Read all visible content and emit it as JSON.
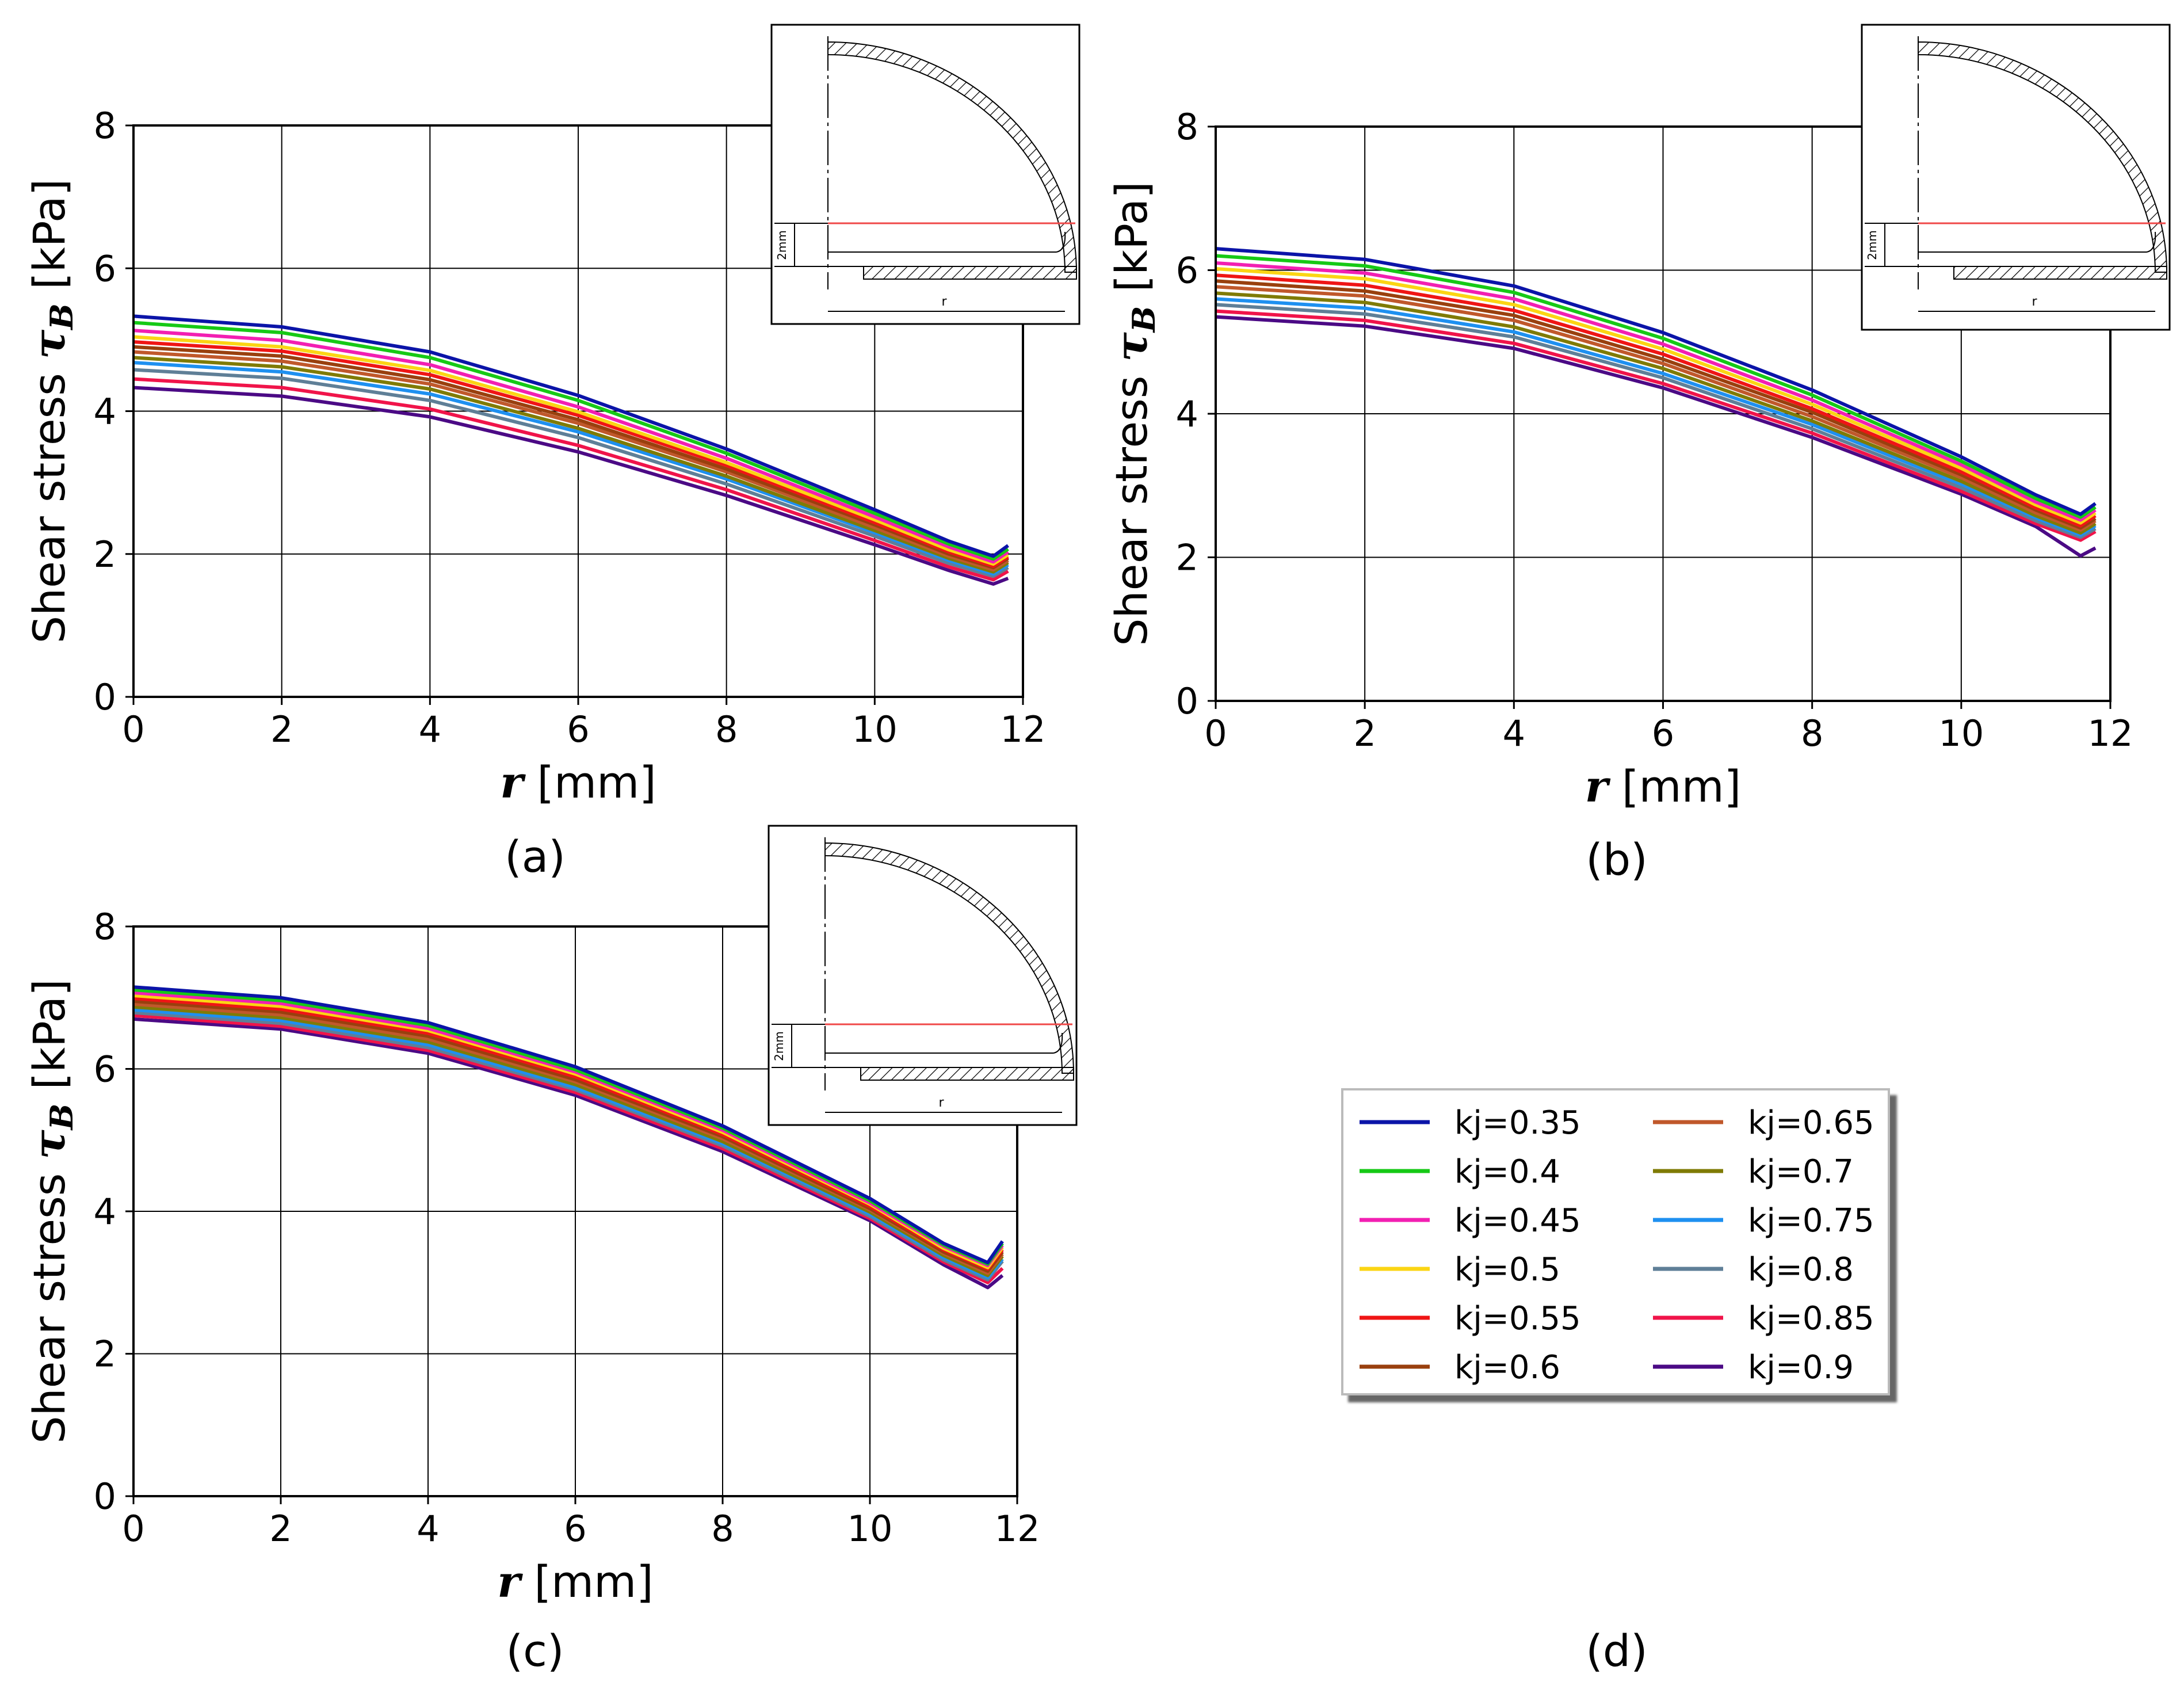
{
  "chart_data": [
    {
      "panel": "(a)",
      "type": "line",
      "xlabel": "r [mm]",
      "ylabel": "Shear stress τB [kPa]",
      "xlim": [
        0,
        12
      ],
      "ylim": [
        0,
        8
      ],
      "xticks": [
        0,
        2,
        4,
        6,
        8,
        10,
        12
      ],
      "yticks": [
        0,
        2,
        4,
        6,
        8
      ],
      "grid": true,
      "x": [
        0,
        2,
        4,
        6,
        8,
        10,
        11,
        11.6,
        11.8
      ],
      "series": [
        {
          "name": "kj=0.35",
          "values": [
            5.33,
            5.18,
            4.83,
            4.22,
            3.47,
            2.62,
            2.18,
            1.97,
            2.12
          ]
        },
        {
          "name": "kj=0.4",
          "values": [
            5.24,
            5.1,
            4.75,
            4.15,
            3.41,
            2.57,
            2.14,
            1.93,
            2.07
          ]
        },
        {
          "name": "kj=0.45",
          "values": [
            5.13,
            4.99,
            4.65,
            4.06,
            3.34,
            2.52,
            2.1,
            1.89,
            2.03
          ]
        },
        {
          "name": "kj=0.5",
          "values": [
            5.04,
            4.9,
            4.57,
            3.99,
            3.28,
            2.48,
            2.06,
            1.86,
            1.99
          ]
        },
        {
          "name": "kj=0.55",
          "values": [
            4.97,
            4.84,
            4.51,
            3.94,
            3.24,
            2.44,
            2.03,
            1.83,
            1.96
          ]
        },
        {
          "name": "kj=0.6",
          "values": [
            4.9,
            4.77,
            4.44,
            3.88,
            3.19,
            2.41,
            2.0,
            1.81,
            1.94
          ]
        },
        {
          "name": "kj=0.65",
          "values": [
            4.83,
            4.7,
            4.38,
            3.83,
            3.15,
            2.37,
            1.97,
            1.78,
            1.91
          ]
        },
        {
          "name": "kj=0.7",
          "values": [
            4.75,
            4.62,
            4.31,
            3.76,
            3.09,
            2.33,
            1.94,
            1.75,
            1.88
          ]
        },
        {
          "name": "kj=0.75",
          "values": [
            4.68,
            4.55,
            4.24,
            3.71,
            3.05,
            2.3,
            1.91,
            1.72,
            1.85
          ]
        },
        {
          "name": "kj=0.8",
          "values": [
            4.58,
            4.46,
            4.15,
            3.63,
            2.98,
            2.25,
            1.87,
            1.69,
            1.81
          ]
        },
        {
          "name": "kj=0.85",
          "values": [
            4.45,
            4.33,
            4.03,
            3.52,
            2.9,
            2.19,
            1.82,
            1.64,
            1.76
          ]
        },
        {
          "name": "kj=0.9",
          "values": [
            4.33,
            4.21,
            3.92,
            3.43,
            2.82,
            2.13,
            1.77,
            1.58,
            1.66
          ]
        }
      ]
    },
    {
      "panel": "(b)",
      "type": "line",
      "xlabel": "r [mm]",
      "ylabel": "Shear stress τB [kPa]",
      "xlim": [
        0,
        12
      ],
      "ylim": [
        0,
        8
      ],
      "xticks": [
        0,
        2,
        4,
        6,
        8,
        10,
        12
      ],
      "yticks": [
        0,
        2,
        4,
        6,
        8
      ],
      "grid": true,
      "x": [
        0,
        2,
        4,
        6,
        8,
        10,
        11,
        11.6,
        11.8
      ],
      "series": [
        {
          "name": "kj=0.35",
          "values": [
            6.3,
            6.15,
            5.78,
            5.13,
            4.33,
            3.4,
            2.87,
            2.6,
            2.75
          ]
        },
        {
          "name": "kj=0.4",
          "values": [
            6.2,
            6.06,
            5.69,
            5.05,
            4.26,
            3.34,
            2.82,
            2.56,
            2.7
          ]
        },
        {
          "name": "kj=0.45",
          "values": [
            6.1,
            5.96,
            5.6,
            4.97,
            4.19,
            3.29,
            2.77,
            2.52,
            2.66
          ]
        },
        {
          "name": "kj=0.5",
          "values": [
            6.02,
            5.88,
            5.52,
            4.9,
            4.13,
            3.24,
            2.73,
            2.48,
            2.62
          ]
        },
        {
          "name": "kj=0.55",
          "values": [
            5.93,
            5.79,
            5.44,
            4.83,
            4.07,
            3.19,
            2.69,
            2.44,
            2.58
          ]
        },
        {
          "name": "kj=0.6",
          "values": [
            5.85,
            5.71,
            5.37,
            4.76,
            4.02,
            3.15,
            2.66,
            2.41,
            2.54
          ]
        },
        {
          "name": "kj=0.65",
          "values": [
            5.77,
            5.64,
            5.3,
            4.7,
            3.96,
            3.11,
            2.62,
            2.38,
            2.51
          ]
        },
        {
          "name": "kj=0.7",
          "values": [
            5.68,
            5.55,
            5.21,
            4.63,
            3.9,
            3.06,
            2.58,
            2.34,
            2.47
          ]
        },
        {
          "name": "kj=0.75",
          "values": [
            5.6,
            5.47,
            5.14,
            4.56,
            3.85,
            3.02,
            2.55,
            2.31,
            2.44
          ]
        },
        {
          "name": "kj=0.8",
          "values": [
            5.52,
            5.39,
            5.07,
            4.5,
            3.79,
            2.97,
            2.51,
            2.28,
            2.4
          ]
        },
        {
          "name": "kj=0.85",
          "values": [
            5.43,
            5.3,
            4.98,
            4.42,
            3.73,
            2.92,
            2.47,
            2.24,
            2.36
          ]
        },
        {
          "name": "kj=0.9",
          "values": [
            5.35,
            5.22,
            4.91,
            4.36,
            3.67,
            2.88,
            2.43,
            2.02,
            2.13
          ]
        }
      ]
    },
    {
      "panel": "(c)",
      "type": "line",
      "xlabel": "r [mm]",
      "ylabel": "Shear stress τB [kPa]",
      "xlim": [
        0,
        12
      ],
      "ylim": [
        0,
        8
      ],
      "xticks": [
        0,
        2,
        4,
        6,
        8,
        10,
        12
      ],
      "yticks": [
        0,
        2,
        4,
        6,
        8
      ],
      "grid": true,
      "x": [
        0,
        2,
        4,
        6,
        8,
        10,
        11,
        11.6,
        11.8
      ],
      "series": [
        {
          "name": "kj=0.35",
          "values": [
            7.15,
            7.0,
            6.65,
            6.03,
            5.2,
            4.18,
            3.55,
            3.28,
            3.58
          ]
        },
        {
          "name": "kj=0.4",
          "values": [
            7.11,
            6.96,
            6.61,
            5.99,
            5.17,
            4.15,
            3.53,
            3.26,
            3.55
          ]
        },
        {
          "name": "kj=0.45",
          "values": [
            7.07,
            6.92,
            6.57,
            5.96,
            5.14,
            4.12,
            3.51,
            3.24,
            3.52
          ]
        },
        {
          "name": "kj=0.5",
          "values": [
            7.03,
            6.88,
            6.54,
            5.93,
            5.11,
            4.1,
            3.48,
            3.21,
            3.49
          ]
        },
        {
          "name": "kj=0.55",
          "values": [
            6.99,
            6.84,
            6.5,
            5.89,
            5.08,
            4.07,
            3.46,
            3.19,
            3.46
          ]
        },
        {
          "name": "kj=0.6",
          "values": [
            6.95,
            6.8,
            6.46,
            5.85,
            5.05,
            4.04,
            3.43,
            3.16,
            3.43
          ]
        },
        {
          "name": "kj=0.65",
          "values": [
            6.91,
            6.76,
            6.42,
            5.82,
            5.02,
            4.02,
            3.41,
            3.13,
            3.4
          ]
        },
        {
          "name": "kj=0.7",
          "values": [
            6.87,
            6.72,
            6.38,
            5.78,
            4.98,
            3.99,
            3.38,
            3.1,
            3.37
          ]
        },
        {
          "name": "kj=0.75",
          "values": [
            6.83,
            6.68,
            6.34,
            5.74,
            4.95,
            3.96,
            3.35,
            3.07,
            3.33
          ]
        },
        {
          "name": "kj=0.8",
          "values": [
            6.79,
            6.64,
            6.3,
            5.71,
            4.92,
            3.93,
            3.32,
            3.04,
            3.3
          ]
        },
        {
          "name": "kj=0.85",
          "values": [
            6.75,
            6.6,
            6.26,
            5.67,
            4.88,
            3.9,
            3.29,
            3.0,
            3.2
          ]
        },
        {
          "name": "kj=0.9",
          "values": [
            6.7,
            6.56,
            6.22,
            5.63,
            4.84,
            3.87,
            3.25,
            2.93,
            3.1
          ]
        }
      ]
    }
  ],
  "colors": {
    "kj=0.35": "#0b14a8",
    "kj=0.4": "#16c916",
    "kj=0.45": "#f21fb2",
    "kj=0.5": "#fbd514",
    "kj=0.55": "#ef1515",
    "kj=0.6": "#99400e",
    "kj=0.65": "#c0582b",
    "kj=0.7": "#7f7b06",
    "kj=0.75": "#1e90f0",
    "kj=0.8": "#5f7f97",
    "kj=0.85": "#f0144a",
    "kj=0.9": "#4b0a85",
    "inset_line": "#f04848"
  },
  "inset": {
    "dimension_label": "2mm",
    "radius_label": "r"
  },
  "captions": {
    "a": "(a)",
    "b": "(b)",
    "c": "(c)",
    "d": "(d)"
  },
  "legend": {
    "entries": [
      "kj=0.35",
      "kj=0.4",
      "kj=0.45",
      "kj=0.5",
      "kj=0.55",
      "kj=0.6",
      "kj=0.65",
      "kj=0.7",
      "kj=0.75",
      "kj=0.8",
      "kj=0.85",
      "kj=0.9"
    ]
  },
  "labels": {
    "x_symbol": "r",
    "x_unit": " [mm]",
    "y_text": "Shear stress ",
    "y_symbol": "τ",
    "y_sub": "B",
    "y_unit": " [kPa]"
  }
}
